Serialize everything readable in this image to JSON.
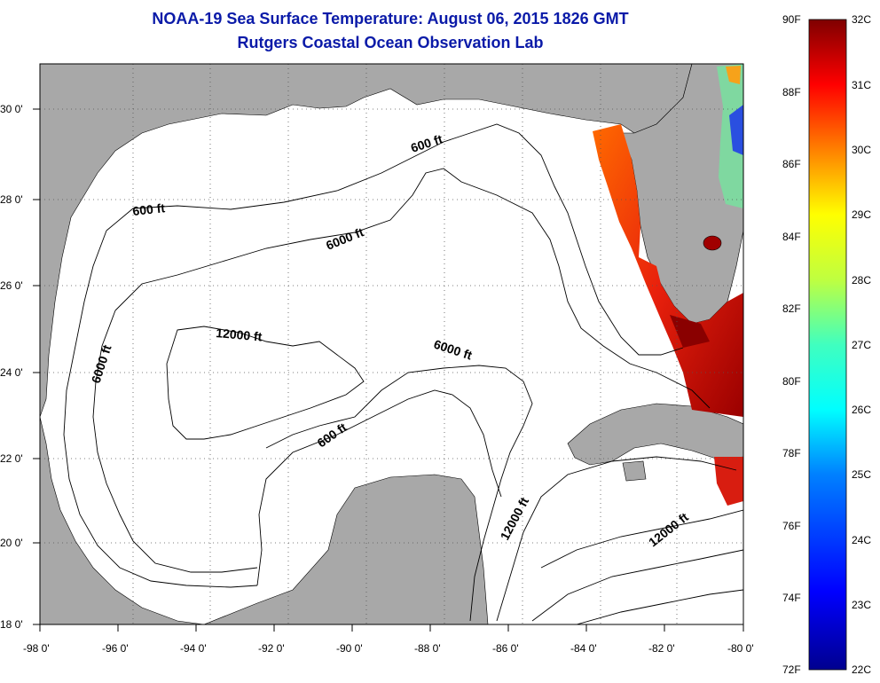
{
  "title": {
    "line1": "NOAA-19 Sea Surface Temperature:  August 06, 2015 1826 GMT",
    "line2": "Rutgers Coastal Ocean Observation Lab"
  },
  "map": {
    "region": "Gulf of Mexico",
    "lon_range": [
      -98,
      -80
    ],
    "lat_range": [
      18,
      31
    ],
    "x_ticks": [
      "-98 0'",
      "-96 0'",
      "-94 0'",
      "-92 0'",
      "-90 0'",
      "-88 0'",
      "-86 0'",
      "-84 0'",
      "-82 0'",
      "-80 0'"
    ],
    "y_ticks": [
      "30 0'",
      "28 0'",
      "26 0'",
      "24 0'",
      "22 0'",
      "20 0'",
      "18 0'"
    ],
    "contour_labels": [
      "600 ft",
      "600 ft",
      "600 ft",
      "6000 ft",
      "6000 ft",
      "6000 ft",
      "12000 ft",
      "12000 ft",
      "12000 ft"
    ],
    "colors": {
      "land": "#a8a8a8",
      "water": "#ffffff",
      "title": "#0a1aa8"
    }
  },
  "colorbar": {
    "fahrenheit_labels": [
      "90F",
      "88F",
      "86F",
      "84F",
      "82F",
      "80F",
      "78F",
      "76F",
      "74F",
      "72F"
    ],
    "celsius_labels": [
      "32C",
      "31C",
      "30C",
      "29C",
      "28C",
      "27C",
      "26C",
      "25C",
      "24C",
      "23C",
      "22C"
    ],
    "min_c": 22,
    "max_c": 32
  }
}
